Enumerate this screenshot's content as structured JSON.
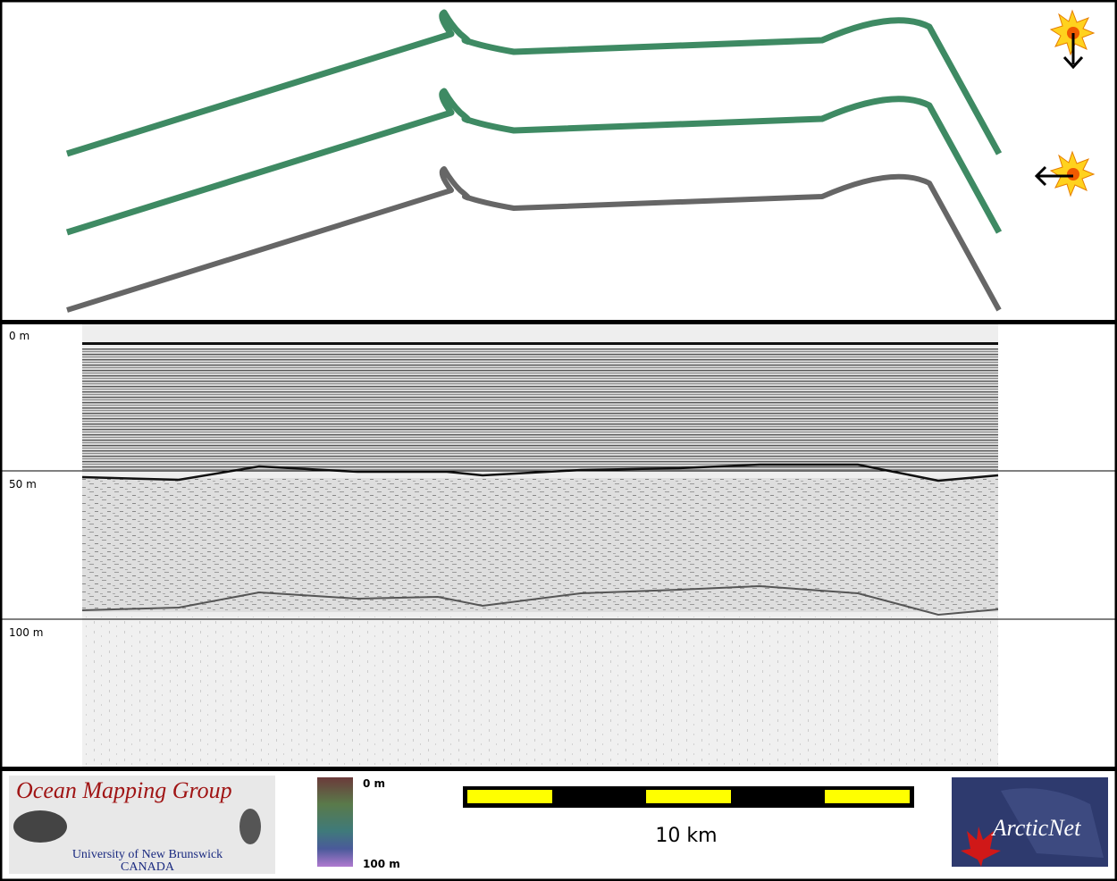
{
  "profile": {
    "depth_labels": [
      "0 m",
      "50 m",
      "100 m"
    ]
  },
  "footer": {
    "logo_left": {
      "title": "Ocean Mapping Group",
      "line1": "University of New Brunswick",
      "line2": "CANADA"
    },
    "colorbar": {
      "top_label": "0 m",
      "bottom_label": "100 m"
    },
    "scale_label": "10 km",
    "logo_right": {
      "title": "ArcticNet"
    }
  }
}
